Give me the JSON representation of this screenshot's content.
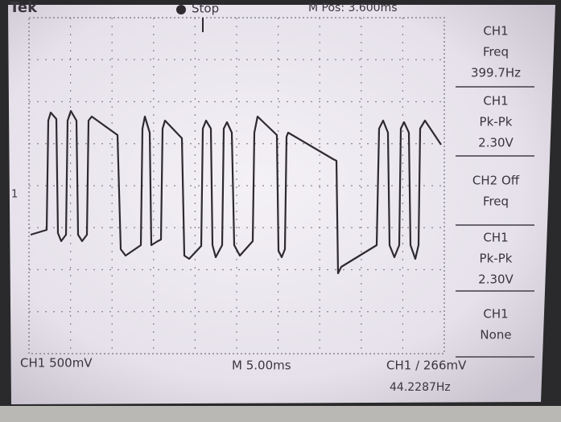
{
  "header": {
    "brand": "Tek",
    "status": "Stop",
    "position": "M Pos: 3.600ms"
  },
  "measurements": [
    {
      "lines": [
        "CH1",
        "Freq",
        "399.7Hz"
      ]
    },
    {
      "lines": [
        "CH1",
        "Pk-Pk",
        "2.30V"
      ]
    },
    {
      "lines": [
        "CH2 Off",
        "Freq"
      ]
    },
    {
      "lines": [
        "CH1",
        "Pk-Pk",
        "2.30V"
      ]
    },
    {
      "lines": [
        "CH1",
        "None"
      ]
    }
  ],
  "footer": {
    "channel_scale": "CH1  500mV",
    "timebase": "M 5.00ms",
    "trigger": "CH1 ∕ 266mV",
    "trigger_freq": "44.2287Hz"
  },
  "marker": "1"
}
